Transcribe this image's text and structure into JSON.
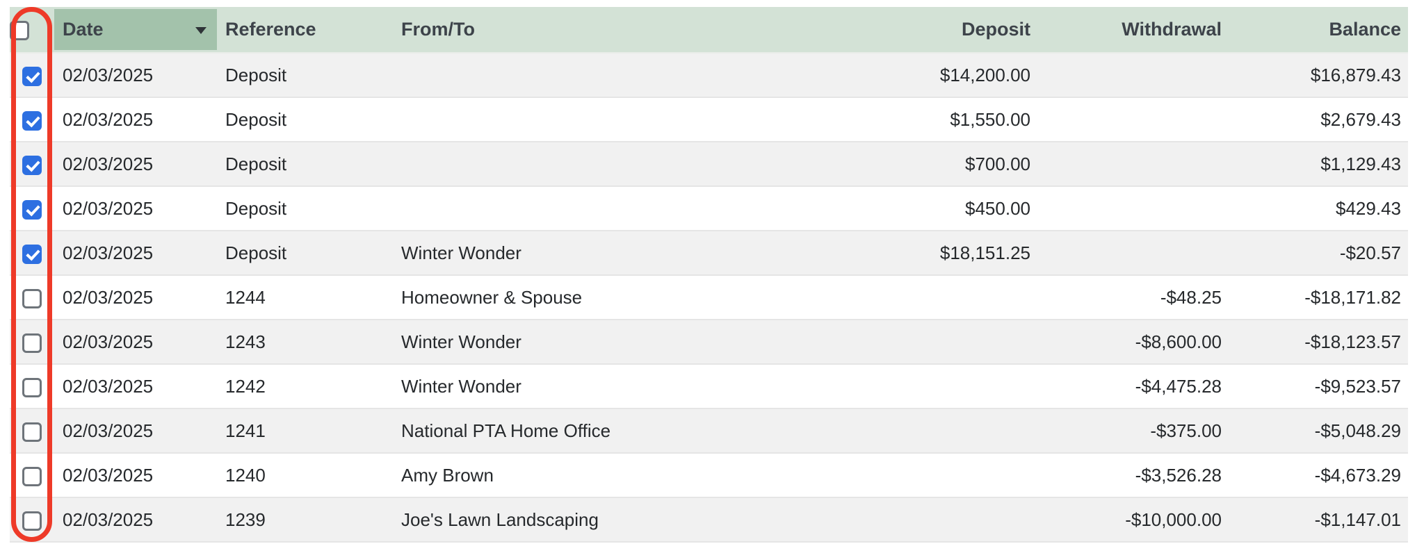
{
  "colors": {
    "header-bg": "#d3e2d6",
    "date-header-bg": "#a3c2ab",
    "row-alt-bg": "#f1f1f1",
    "checkbox-checked": "#2d6fe1",
    "annotation": "#ee3a28"
  },
  "annotation": {
    "shape": "rounded-rectangle",
    "purpose": "highlights checkbox column",
    "color": "#ee3a28"
  },
  "table": {
    "select_all_checked": false,
    "sort": {
      "column": "Date",
      "direction": "desc"
    },
    "columns": [
      {
        "key": "date",
        "label": "Date",
        "sorted": true
      },
      {
        "key": "reference",
        "label": "Reference",
        "sorted": false
      },
      {
        "key": "from_to",
        "label": "From/To",
        "sorted": false
      },
      {
        "key": "deposit",
        "label": "Deposit",
        "sorted": false
      },
      {
        "key": "withdrawal",
        "label": "Withdrawal",
        "sorted": false
      },
      {
        "key": "balance",
        "label": "Balance",
        "sorted": false
      }
    ],
    "rows": [
      {
        "checked": true,
        "date": "02/03/2025",
        "reference": "Deposit",
        "from_to": "",
        "deposit": "$14,200.00",
        "withdrawal": "",
        "balance": "$16,879.43"
      },
      {
        "checked": true,
        "date": "02/03/2025",
        "reference": "Deposit",
        "from_to": "",
        "deposit": "$1,550.00",
        "withdrawal": "",
        "balance": "$2,679.43"
      },
      {
        "checked": true,
        "date": "02/03/2025",
        "reference": "Deposit",
        "from_to": "",
        "deposit": "$700.00",
        "withdrawal": "",
        "balance": "$1,129.43"
      },
      {
        "checked": true,
        "date": "02/03/2025",
        "reference": "Deposit",
        "from_to": "",
        "deposit": "$450.00",
        "withdrawal": "",
        "balance": "$429.43"
      },
      {
        "checked": true,
        "date": "02/03/2025",
        "reference": "Deposit",
        "from_to": "Winter Wonder",
        "deposit": "$18,151.25",
        "withdrawal": "",
        "balance": "-$20.57"
      },
      {
        "checked": false,
        "date": "02/03/2025",
        "reference": "1244",
        "from_to": "Homeowner & Spouse",
        "deposit": "",
        "withdrawal": "-$48.25",
        "balance": "-$18,171.82"
      },
      {
        "checked": false,
        "date": "02/03/2025",
        "reference": "1243",
        "from_to": "Winter Wonder",
        "deposit": "",
        "withdrawal": "-$8,600.00",
        "balance": "-$18,123.57"
      },
      {
        "checked": false,
        "date": "02/03/2025",
        "reference": "1242",
        "from_to": "Winter Wonder",
        "deposit": "",
        "withdrawal": "-$4,475.28",
        "balance": "-$9,523.57"
      },
      {
        "checked": false,
        "date": "02/03/2025",
        "reference": "1241",
        "from_to": "National PTA Home Office",
        "deposit": "",
        "withdrawal": "-$375.00",
        "balance": "-$5,048.29"
      },
      {
        "checked": false,
        "date": "02/03/2025",
        "reference": "1240",
        "from_to": "Amy Brown",
        "deposit": "",
        "withdrawal": "-$3,526.28",
        "balance": "-$4,673.29"
      },
      {
        "checked": false,
        "date": "02/03/2025",
        "reference": "1239",
        "from_to": "Joe's Lawn Landscaping",
        "deposit": "",
        "withdrawal": "-$10,000.00",
        "balance": "-$1,147.01"
      }
    ]
  }
}
